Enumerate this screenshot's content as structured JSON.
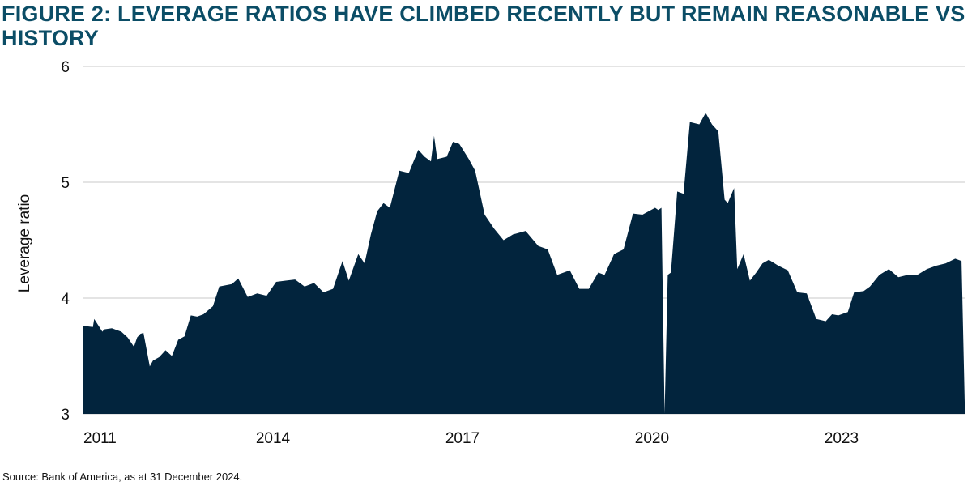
{
  "title": "FIGURE 2: LEVERAGE RATIOS HAVE CLIMBED RECENTLY BUT REMAIN REASONABLE VS HISTORY",
  "source": "Source: Bank of America, as at 31 December 2024.",
  "colors": {
    "title": "#0b4d66",
    "area": "#02243d",
    "grid": "#c8c8c8"
  },
  "chart_data": {
    "type": "area",
    "title": "FIGURE 2: LEVERAGE RATIOS HAVE CLIMBED RECENTLY BUT REMAIN REASONABLE VS HISTORY",
    "xlabel": "",
    "ylabel": "Leverage ratio",
    "xlim": [
      2011,
      2024.95
    ],
    "ylim": [
      3,
      6
    ],
    "yticks": [
      "3",
      "4",
      "5",
      "6"
    ],
    "xticks": [
      "2011",
      "2014",
      "2017",
      "2020",
      "2023"
    ],
    "grid": true,
    "x": [
      2011.0,
      2011.15,
      2011.17,
      2011.3,
      2011.33,
      2011.45,
      2011.6,
      2011.7,
      2011.8,
      2011.85,
      2011.9,
      2011.95,
      2012.05,
      2012.1,
      2012.2,
      2012.3,
      2012.4,
      2012.5,
      2012.6,
      2012.7,
      2012.8,
      2012.9,
      2013.05,
      2013.15,
      2013.25,
      2013.35,
      2013.45,
      2013.6,
      2013.75,
      2013.9,
      2014.05,
      2014.2,
      2014.35,
      2014.5,
      2014.65,
      2014.8,
      2014.95,
      2015.1,
      2015.2,
      2015.35,
      2015.45,
      2015.55,
      2015.65,
      2015.75,
      2015.85,
      2016.0,
      2016.15,
      2016.3,
      2016.4,
      2016.5,
      2016.55,
      2016.6,
      2016.75,
      2016.85,
      2016.95,
      2017.1,
      2017.2,
      2017.35,
      2017.5,
      2017.65,
      2017.8,
      2018.0,
      2018.2,
      2018.35,
      2018.5,
      2018.7,
      2018.85,
      2019.0,
      2019.15,
      2019.25,
      2019.4,
      2019.55,
      2019.7,
      2019.85,
      2019.95,
      2020.05,
      2020.1,
      2020.15,
      2020.2,
      2020.25,
      2020.3,
      2020.4,
      2020.5,
      2020.6,
      2020.75,
      2020.85,
      2020.95,
      2021.05,
      2021.15,
      2021.2,
      2021.3,
      2021.35,
      2021.45,
      2021.55,
      2021.65,
      2021.75,
      2021.85,
      2022.0,
      2022.15,
      2022.3,
      2022.45,
      2022.6,
      2022.75,
      2022.85,
      2022.95,
      2023.1,
      2023.2,
      2023.35,
      2023.45,
      2023.6,
      2023.75,
      2023.9,
      2024.05,
      2024.2,
      2024.35,
      2024.5,
      2024.65,
      2024.8,
      2024.9,
      2024.95
    ],
    "values": [
      3.76,
      3.75,
      3.82,
      3.71,
      3.73,
      3.74,
      3.71,
      3.66,
      3.58,
      3.66,
      3.69,
      3.7,
      3.41,
      3.46,
      3.49,
      3.55,
      3.5,
      3.64,
      3.67,
      3.85,
      3.84,
      3.86,
      3.93,
      4.1,
      4.11,
      4.12,
      4.17,
      4.01,
      4.04,
      4.02,
      4.14,
      4.15,
      4.16,
      4.1,
      4.13,
      4.05,
      4.08,
      4.32,
      4.15,
      4.38,
      4.3,
      4.55,
      4.75,
      4.82,
      4.78,
      5.1,
      5.08,
      5.28,
      5.22,
      5.18,
      5.4,
      5.2,
      5.22,
      5.35,
      5.33,
      5.2,
      5.1,
      4.72,
      4.6,
      4.5,
      4.55,
      4.58,
      4.45,
      4.42,
      4.2,
      4.24,
      4.08,
      4.08,
      4.22,
      4.2,
      4.38,
      4.42,
      4.73,
      4.72,
      4.75,
      4.78,
      4.76,
      4.78,
      0,
      4.2,
      4.22,
      4.92,
      4.9,
      5.52,
      5.5,
      5.6,
      5.5,
      5.44,
      4.85,
      4.82,
      4.95,
      4.25,
      4.38,
      4.15,
      4.22,
      4.3,
      4.33,
      4.28,
      4.24,
      4.05,
      4.04,
      3.82,
      3.8,
      3.86,
      3.85,
      3.88,
      4.05,
      4.06,
      4.1,
      4.2,
      4.25,
      4.18,
      4.2,
      4.2,
      4.25,
      4.28,
      4.3,
      4.34,
      4.32,
      3.1
    ]
  }
}
